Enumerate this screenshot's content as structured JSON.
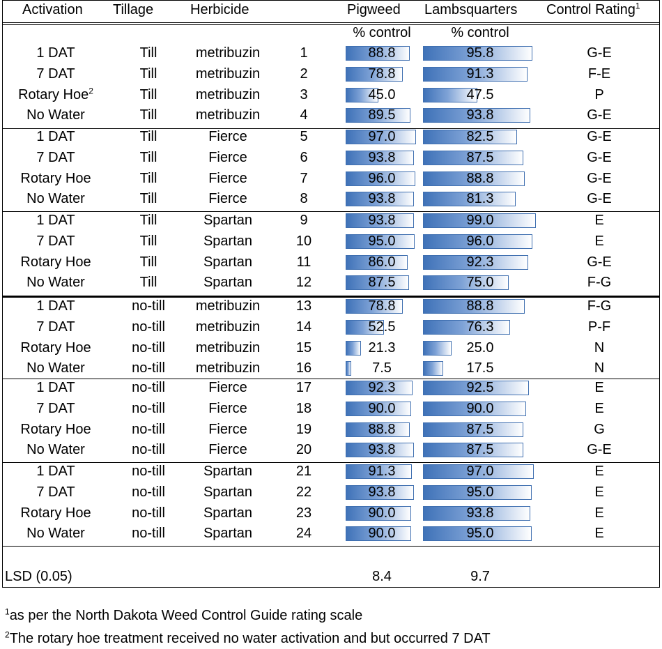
{
  "headers": {
    "activation": "Activation",
    "tillage": "Tillage",
    "herbicide": "Herbicide",
    "pigweed": "Pigweed",
    "lambsquarters": "Lambsquarters",
    "control_rating": "Control Rating",
    "control_rating_sup": "1"
  },
  "units": {
    "pigweed": "% control",
    "lambsquarters": "% control"
  },
  "bar_max": 100,
  "bar_color": "#3f72b8",
  "rows": [
    {
      "activation": "1 DAT",
      "tillage": "Till",
      "herbicide": "metribuzin",
      "num": "1",
      "pigweed": "88.8",
      "lambsquarters": "95.8",
      "rating": "G-E"
    },
    {
      "activation": "7 DAT",
      "tillage": "Till",
      "herbicide": "metribuzin",
      "num": "2",
      "pigweed": "78.8",
      "lambsquarters": "91.3",
      "rating": "F-E"
    },
    {
      "activation": "Rotary Hoe",
      "activation_sup": "2",
      "tillage": "Till",
      "herbicide": "metribuzin",
      "num": "3",
      "pigweed": "45.0",
      "lambsquarters": "47.5",
      "rating": "P"
    },
    {
      "activation": "No Water",
      "tillage": "Till",
      "herbicide": "metribuzin",
      "num": "4",
      "pigweed": "89.5",
      "lambsquarters": "93.8",
      "rating": "G-E"
    },
    {
      "activation": "1 DAT",
      "tillage": "Till",
      "herbicide": "Fierce",
      "num": "5",
      "pigweed": "97.0",
      "lambsquarters": "82.5",
      "rating": "G-E"
    },
    {
      "activation": "7 DAT",
      "tillage": "Till",
      "herbicide": "Fierce",
      "num": "6",
      "pigweed": "93.8",
      "lambsquarters": "87.5",
      "rating": "G-E"
    },
    {
      "activation": "Rotary Hoe",
      "tillage": "Till",
      "herbicide": "Fierce",
      "num": "7",
      "pigweed": "96.0",
      "lambsquarters": "88.8",
      "rating": "G-E"
    },
    {
      "activation": "No Water",
      "tillage": "Till",
      "herbicide": "Fierce",
      "num": "8",
      "pigweed": "93.8",
      "lambsquarters": "81.3",
      "rating": "G-E"
    },
    {
      "activation": "1 DAT",
      "tillage": "Till",
      "herbicide": "Spartan",
      "num": "9",
      "pigweed": "93.8",
      "lambsquarters": "99.0",
      "rating": "E"
    },
    {
      "activation": "7 DAT",
      "tillage": "Till",
      "herbicide": "Spartan",
      "num": "10",
      "pigweed": "95.0",
      "lambsquarters": "96.0",
      "rating": "E"
    },
    {
      "activation": "Rotary Hoe",
      "tillage": "Till",
      "herbicide": "Spartan",
      "num": "11",
      "pigweed": "86.0",
      "lambsquarters": "92.3",
      "rating": "G-E"
    },
    {
      "activation": "No Water",
      "tillage": "Till",
      "herbicide": "Spartan",
      "num": "12",
      "pigweed": "87.5",
      "lambsquarters": "75.0",
      "rating": "F-G"
    },
    {
      "activation": "1 DAT",
      "tillage": "no-till",
      "herbicide": "metribuzin",
      "num": "13",
      "pigweed": "78.8",
      "lambsquarters": "88.8",
      "rating": "F-G"
    },
    {
      "activation": "7 DAT",
      "tillage": "no-till",
      "herbicide": "metribuzin",
      "num": "14",
      "pigweed": "52.5",
      "lambsquarters": "76.3",
      "rating": "P-F"
    },
    {
      "activation": "Rotary Hoe",
      "tillage": "no-till",
      "herbicide": "metribuzin",
      "num": "15",
      "pigweed": "21.3",
      "lambsquarters": "25.0",
      "rating": "N"
    },
    {
      "activation": "No Water",
      "tillage": "no-till",
      "herbicide": "metribuzin",
      "num": "16",
      "pigweed": "7.5",
      "lambsquarters": "17.5",
      "rating": "N"
    },
    {
      "activation": "1 DAT",
      "tillage": "no-till",
      "herbicide": "Fierce",
      "num": "17",
      "pigweed": "92.3",
      "lambsquarters": "92.5",
      "rating": "E"
    },
    {
      "activation": "7 DAT",
      "tillage": "no-till",
      "herbicide": "Fierce",
      "num": "18",
      "pigweed": "90.0",
      "lambsquarters": "90.0",
      "rating": "E"
    },
    {
      "activation": "Rotary Hoe",
      "tillage": "no-till",
      "herbicide": "Fierce",
      "num": "19",
      "pigweed": "88.8",
      "lambsquarters": "87.5",
      "rating": "G"
    },
    {
      "activation": "No Water",
      "tillage": "no-till",
      "herbicide": "Fierce",
      "num": "20",
      "pigweed": "93.8",
      "lambsquarters": "87.5",
      "rating": "G-E"
    },
    {
      "activation": "1 DAT",
      "tillage": "no-till",
      "herbicide": "Spartan",
      "num": "21",
      "pigweed": "91.3",
      "lambsquarters": "97.0",
      "rating": "E"
    },
    {
      "activation": "7 DAT",
      "tillage": "no-till",
      "herbicide": "Spartan",
      "num": "22",
      "pigweed": "93.8",
      "lambsquarters": "95.0",
      "rating": "E"
    },
    {
      "activation": "Rotary Hoe",
      "tillage": "no-till",
      "herbicide": "Spartan",
      "num": "23",
      "pigweed": "90.0",
      "lambsquarters": "93.8",
      "rating": "E"
    },
    {
      "activation": "No Water",
      "tillage": "no-till",
      "herbicide": "Spartan",
      "num": "24",
      "pigweed": "90.0",
      "lambsquarters": "95.0",
      "rating": "E"
    }
  ],
  "lsd": {
    "label": "LSD (0.05)",
    "pigweed": "8.4",
    "lambsquarters": "9.7"
  },
  "footnotes": [
    {
      "sup": "1",
      "text": "as per the North Dakota Weed Control Guide rating scale"
    },
    {
      "sup": "2",
      "text": "The rotary hoe treatment received no water activation and but occurred 7 DAT"
    }
  ]
}
